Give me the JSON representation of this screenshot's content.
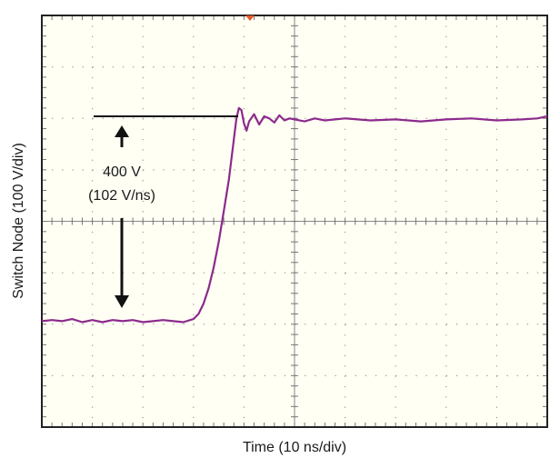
{
  "chart_data": {
    "type": "line",
    "xlabel": "Time (10 ns/div)",
    "ylabel": "Switch Node (100 V/div)",
    "x_unit": "ns",
    "y_unit": "V",
    "xlim": [
      0,
      100
    ],
    "ylim": [
      -300,
      100
    ],
    "grid": true,
    "divisions": {
      "x": 10,
      "y": 8
    },
    "series": [
      {
        "color": "#8c2a8c",
        "x": [
          0,
          2,
          4,
          6,
          8,
          10,
          12,
          14,
          16,
          18,
          20,
          22,
          24,
          26,
          28,
          30,
          31,
          32,
          33,
          34,
          35,
          36,
          37,
          37.5,
          38,
          38.5,
          39,
          39.5,
          40,
          40.5,
          41,
          42,
          43,
          44,
          45,
          46,
          47,
          48,
          49,
          50,
          52,
          54,
          56,
          58,
          60,
          65,
          70,
          75,
          80,
          85,
          90,
          95,
          98,
          100
        ],
        "y": [
          -197,
          -196,
          -197,
          -195,
          -198,
          -196,
          -198,
          -196,
          -197,
          -196,
          -198,
          -197,
          -196,
          -197,
          -198,
          -195,
          -190,
          -180,
          -165,
          -145,
          -120,
          -90,
          -60,
          -40,
          -20,
          0,
          10,
          8,
          -5,
          -12,
          -3,
          4,
          -6,
          2,
          0,
          -4,
          3,
          -2,
          0,
          -1,
          -3,
          0,
          -2,
          -1,
          0,
          -2,
          -1,
          -3,
          -1,
          0,
          -2,
          -1,
          0,
          2
        ]
      }
    ],
    "annotations": [
      {
        "text_line1": "400 V",
        "text_line2": "(102 V/ns)"
      }
    ]
  },
  "trigger_marker": {
    "color": "#e8562a"
  }
}
